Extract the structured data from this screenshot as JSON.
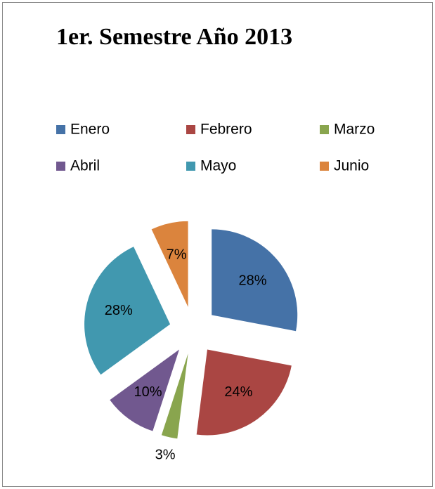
{
  "chart_data": {
    "type": "pie",
    "title": "1er. Semestre Año 2013",
    "categories": [
      "Enero",
      "Febrero",
      "Marzo",
      "Abril",
      "Mayo",
      "Junio"
    ],
    "values": [
      28,
      24,
      3,
      10,
      28,
      7
    ],
    "value_labels": [
      "28%",
      "24%",
      "3%",
      "10%",
      "28%",
      "7%"
    ],
    "colors": [
      "#4572a7",
      "#aa4643",
      "#89a54e",
      "#71588f",
      "#4198af",
      "#db843d"
    ],
    "exploded": true,
    "legend": "top"
  }
}
